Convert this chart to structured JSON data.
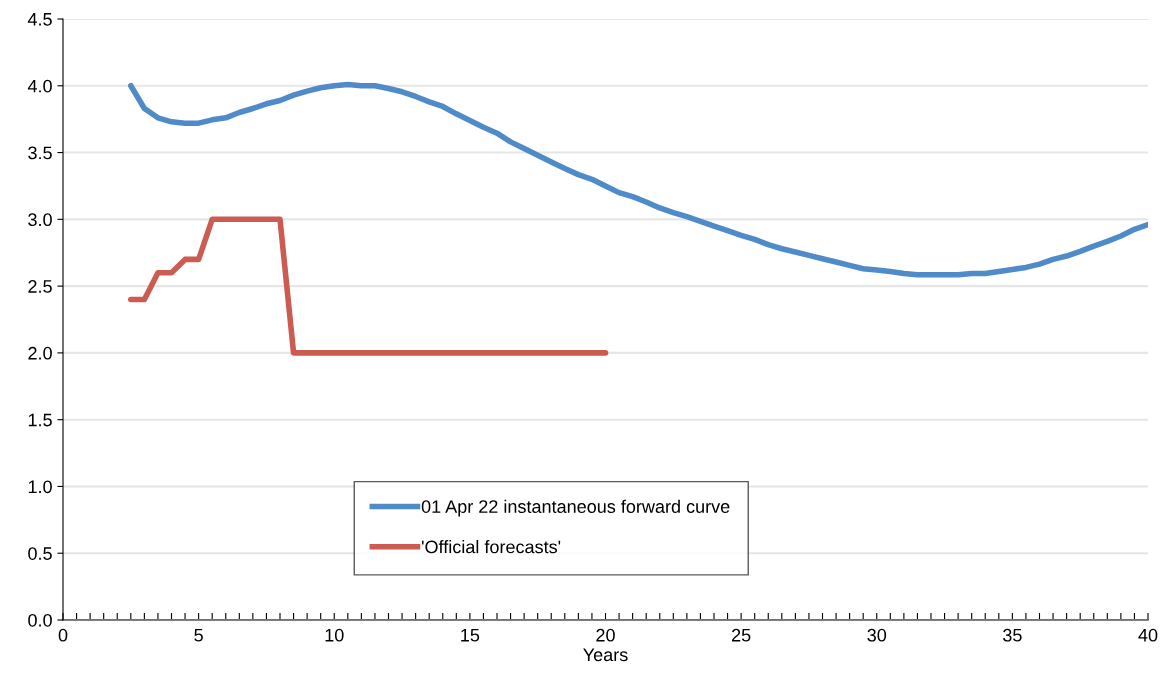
{
  "chart_data": {
    "type": "line",
    "xlabel": "Years",
    "xlim": [
      0,
      40
    ],
    "ylim": [
      0,
      4.5
    ],
    "xticks": [
      0,
      {
        "value": 0.5,
        "label": null
      },
      {
        "value": 1,
        "label": null
      },
      {
        "value": 1.5,
        "label": null
      },
      {
        "value": 2,
        "label": null
      },
      {
        "value": 2.5,
        "label": null
      },
      {
        "value": 3,
        "label": null
      },
      {
        "value": 3.5,
        "label": null
      },
      {
        "value": 4,
        "label": null
      },
      {
        "value": 4.5,
        "label": null
      },
      5,
      {
        "value": 5.5,
        "label": null
      },
      {
        "value": 6,
        "label": null
      },
      {
        "value": 6.5,
        "label": null
      },
      {
        "value": 7,
        "label": null
      },
      {
        "value": 7.5,
        "label": null
      },
      {
        "value": 8,
        "label": null
      },
      {
        "value": 8.5,
        "label": null
      },
      {
        "value": 9,
        "label": null
      },
      {
        "value": 9.5,
        "label": null
      },
      10,
      {
        "value": 10.5,
        "label": null
      },
      {
        "value": 11,
        "label": null
      },
      {
        "value": 11.5,
        "label": null
      },
      {
        "value": 12,
        "label": null
      },
      {
        "value": 12.5,
        "label": null
      },
      {
        "value": 13,
        "label": null
      },
      {
        "value": 13.5,
        "label": null
      },
      {
        "value": 14,
        "label": null
      },
      {
        "value": 14.5,
        "label": null
      },
      15,
      {
        "value": 15.5,
        "label": null
      },
      {
        "value": 16,
        "label": null
      },
      {
        "value": 16.5,
        "label": null
      },
      {
        "value": 17,
        "label": null
      },
      {
        "value": 17.5,
        "label": null
      },
      {
        "value": 18,
        "label": null
      },
      {
        "value": 18.5,
        "label": null
      },
      {
        "value": 19,
        "label": null
      },
      {
        "value": 19.5,
        "label": null
      },
      20,
      {
        "value": 20.5,
        "label": null
      },
      {
        "value": 21,
        "label": null
      },
      {
        "value": 21.5,
        "label": null
      },
      {
        "value": 22,
        "label": null
      },
      {
        "value": 22.5,
        "label": null
      },
      {
        "value": 23,
        "label": null
      },
      {
        "value": 23.5,
        "label": null
      },
      {
        "value": 24,
        "label": null
      },
      {
        "value": 24.5,
        "label": null
      },
      25,
      {
        "value": 25.5,
        "label": null
      },
      {
        "value": 26,
        "label": null
      },
      {
        "value": 26.5,
        "label": null
      },
      {
        "value": 27,
        "label": null
      },
      {
        "value": 27.5,
        "label": null
      },
      {
        "value": 28,
        "label": null
      },
      {
        "value": 28.5,
        "label": null
      },
      {
        "value": 29,
        "label": null
      },
      {
        "value": 29.5,
        "label": null
      },
      30,
      {
        "value": 30.5,
        "label": null
      },
      {
        "value": 31,
        "label": null
      },
      {
        "value": 31.5,
        "label": null
      },
      {
        "value": 32,
        "label": null
      },
      {
        "value": 32.5,
        "label": null
      },
      {
        "value": 33,
        "label": null
      },
      {
        "value": 33.5,
        "label": null
      },
      {
        "value": 34,
        "label": null
      },
      {
        "value": 34.5,
        "label": null
      },
      35,
      {
        "value": 35.5,
        "label": null
      },
      {
        "value": 36,
        "label": null
      },
      {
        "value": 36.5,
        "label": null
      },
      {
        "value": 37,
        "label": null
      },
      {
        "value": 37.5,
        "label": null
      },
      {
        "value": 38,
        "label": null
      },
      {
        "value": 38.5,
        "label": null
      },
      {
        "value": 39,
        "label": null
      },
      {
        "value": 39.5,
        "label": null
      },
      40
    ],
    "yticks": [
      {
        "value": 0,
        "label": "0.0"
      },
      {
        "value": 0.5,
        "label": "0.5"
      },
      {
        "value": 1,
        "label": "1.0"
      },
      {
        "value": 1.5,
        "label": "1.5"
      },
      {
        "value": 2,
        "label": "2.0"
      },
      {
        "value": 2.5,
        "label": "2.5"
      },
      {
        "value": 3,
        "label": "3.0"
      },
      {
        "value": 3.5,
        "label": "3.5"
      },
      {
        "value": 4,
        "label": "4.0"
      },
      {
        "value": 4.5,
        "label": "4.5"
      }
    ],
    "grid": "y",
    "legend": "bottom",
    "line_style": "solid",
    "series": [
      {
        "name": "01 Apr 22 instantaneous forward curve",
        "color": "#4f8bc9",
        "x": [
          2.5,
          3,
          3.5,
          4,
          4.5,
          5,
          5.5,
          6,
          6.5,
          7,
          7.5,
          8,
          8.5,
          9,
          9.5,
          10,
          10.5,
          11,
          11.5,
          12,
          12.5,
          13,
          13.5,
          14,
          14.5,
          15,
          15.5,
          16,
          16.5,
          17,
          17.5,
          18,
          18.5,
          19,
          19.5,
          20,
          20.5,
          21,
          21.5,
          22,
          22.5,
          23,
          23.5,
          24,
          24.5,
          25,
          25.5,
          26,
          26.5,
          27,
          27.5,
          28,
          28.5,
          29,
          29.5,
          30,
          30.5,
          31,
          31.5,
          32,
          32.5,
          33,
          33.5,
          34,
          34.5,
          35,
          35.5,
          36,
          36.5,
          37,
          37.5,
          38,
          38.5,
          39,
          39.5,
          40
        ],
        "values": [
          4.0,
          3.83,
          3.76,
          3.73,
          3.72,
          3.72,
          3.745,
          3.76,
          3.8,
          3.83,
          3.865,
          3.89,
          3.93,
          3.96,
          3.985,
          4.0,
          4.01,
          4.0,
          4.0,
          3.98,
          3.955,
          3.92,
          3.88,
          3.845,
          3.79,
          3.74,
          3.69,
          3.645,
          3.58,
          3.53,
          3.48,
          3.43,
          3.38,
          3.335,
          3.3,
          3.25,
          3.2,
          3.17,
          3.13,
          3.085,
          3.05,
          3.02,
          2.985,
          2.95,
          2.915,
          2.88,
          2.85,
          2.81,
          2.78,
          2.755,
          2.73,
          2.705,
          2.68,
          2.655,
          2.63,
          2.62,
          2.61,
          2.595,
          2.585,
          2.585,
          2.585,
          2.585,
          2.595,
          2.595,
          2.61,
          2.625,
          2.64,
          2.665,
          2.7,
          2.725,
          2.76,
          2.8,
          2.835,
          2.875,
          2.925,
          2.96
        ]
      },
      {
        "name": "'Official forecasts'",
        "color": "#cc5b52",
        "x": [
          2.5,
          3,
          3.5,
          4,
          4.5,
          5,
          5.5,
          8,
          8.5,
          20
        ],
        "values": [
          2.4,
          2.4,
          2.6,
          2.6,
          2.7,
          2.7,
          3.0,
          3.0,
          2.0,
          2.0
        ]
      }
    ]
  }
}
